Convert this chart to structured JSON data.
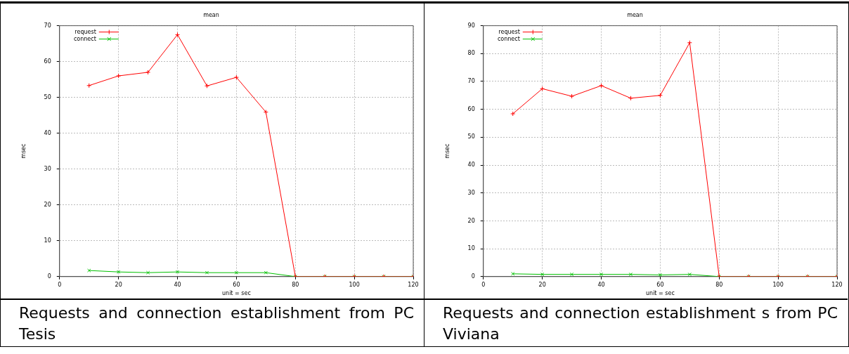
{
  "chart_data": [
    {
      "type": "line",
      "title": "mean",
      "xlabel": "unit = sec",
      "ylabel": "msec",
      "x": [
        10,
        20,
        30,
        40,
        50,
        60,
        70,
        80,
        90,
        100,
        110,
        120
      ],
      "series": [
        {
          "name": "request",
          "color": "#ff0000",
          "marker": "cross",
          "values": [
            53.3,
            56,
            57,
            67.5,
            53.2,
            55.6,
            45.9,
            0,
            0,
            0,
            0,
            0
          ]
        },
        {
          "name": "connect",
          "color": "#00c000",
          "marker": "cross",
          "values": [
            1.7,
            1.3,
            1.1,
            1.3,
            1.1,
            1.1,
            1.1,
            0,
            0,
            0,
            0,
            0
          ]
        }
      ],
      "xlim": [
        0,
        120
      ],
      "xticks": [
        0,
        20,
        40,
        60,
        80,
        100,
        120
      ],
      "ylim": [
        0,
        70
      ],
      "yticks": [
        0,
        10,
        20,
        30,
        40,
        50,
        60,
        70
      ],
      "grid": true,
      "legend": "top left",
      "line_style": "solid",
      "annotations": [
        "Requests and connection establishment from PC Tesis"
      ]
    },
    {
      "type": "line",
      "title": "mean",
      "xlabel": "unit = sec",
      "ylabel": "msec",
      "x": [
        10,
        20,
        30,
        40,
        50,
        60,
        70,
        80,
        90,
        100,
        110,
        120
      ],
      "series": [
        {
          "name": "request",
          "color": "#ff0000",
          "marker": "cross",
          "values": [
            58.4,
            67.4,
            64.7,
            68.5,
            64,
            65,
            83.9,
            0,
            0,
            0,
            0,
            0
          ]
        },
        {
          "name": "connect",
          "color": "#00c000",
          "marker": "cross",
          "values": [
            1,
            0.8,
            0.8,
            0.8,
            0.8,
            0.6,
            0.8,
            0,
            0,
            0,
            0,
            0
          ]
        }
      ],
      "xlim": [
        0,
        120
      ],
      "xticks": [
        0,
        20,
        40,
        60,
        80,
        100,
        120
      ],
      "ylim": [
        0,
        90
      ],
      "yticks": [
        0,
        10,
        20,
        30,
        40,
        50,
        60,
        70,
        80,
        90
      ],
      "grid": true,
      "legend": "top left",
      "line_style": "solid",
      "annotations": [
        "Requests and connection establishment s from PC Viviana"
      ]
    }
  ]
}
